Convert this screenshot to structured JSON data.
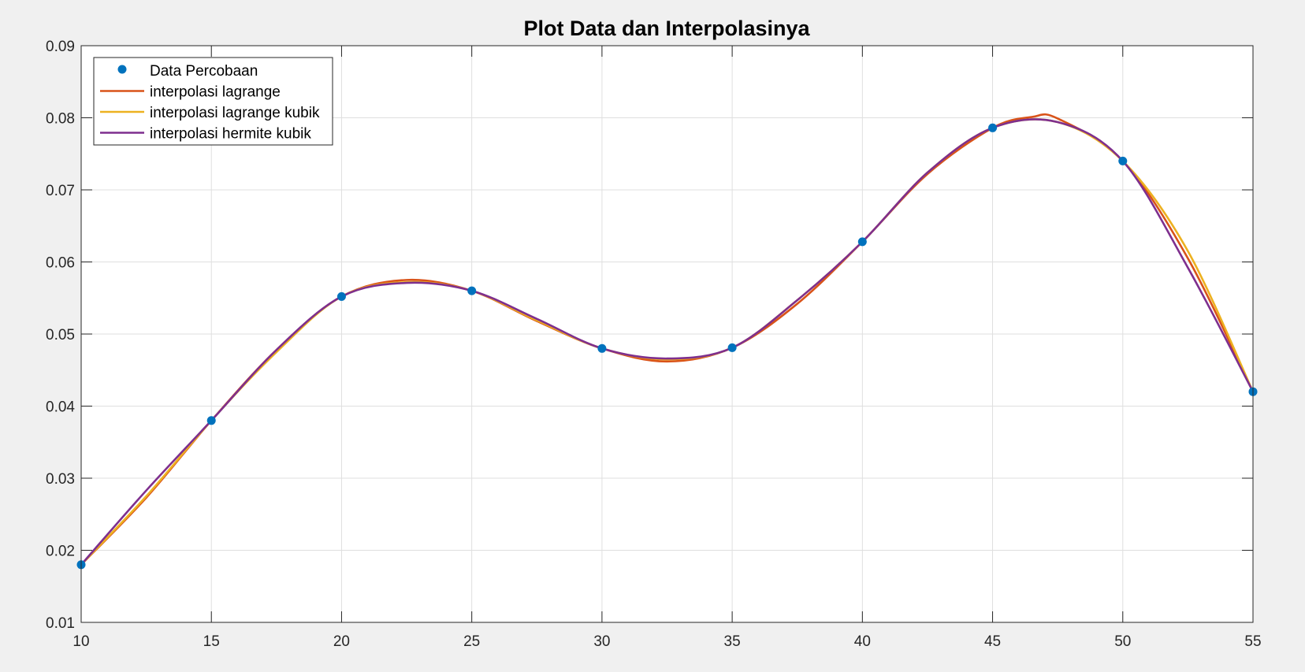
{
  "chart_data": {
    "type": "line",
    "title": "Plot Data dan Interpolasinya",
    "xlabel": "",
    "ylabel": "",
    "xlim": [
      10,
      55
    ],
    "ylim": [
      0.01,
      0.09
    ],
    "xticks": [
      10,
      15,
      20,
      25,
      30,
      35,
      40,
      45,
      50,
      55
    ],
    "yticks": [
      0.01,
      0.02,
      0.03,
      0.04,
      0.05,
      0.06,
      0.07,
      0.08,
      0.09
    ],
    "xtick_labels": [
      "10",
      "15",
      "20",
      "25",
      "30",
      "35",
      "40",
      "45",
      "50",
      "55"
    ],
    "ytick_labels": [
      "0.01",
      "0.02",
      "0.03",
      "0.04",
      "0.05",
      "0.06",
      "0.07",
      "0.08",
      "0.09"
    ],
    "grid": true,
    "legend_position": "top-left",
    "points": {
      "name": "Data Percobaan",
      "color": "#0072BD",
      "x": [
        10,
        15,
        20,
        25,
        30,
        35,
        40,
        45,
        50,
        55
      ],
      "y": [
        0.018,
        0.038,
        0.0552,
        0.056,
        0.048,
        0.0481,
        0.0628,
        0.0786,
        0.074,
        0.042
      ]
    },
    "series": [
      {
        "name": "interpolasi lagrange",
        "color": "#D95319",
        "x": [
          10,
          12.5,
          15,
          17.5,
          20,
          22.5,
          25,
          27.5,
          30,
          32.5,
          35,
          37.5,
          40,
          42.5,
          45,
          46.5,
          47.5,
          50,
          52.5,
          55
        ],
        "y": [
          0.018,
          0.0273,
          0.038,
          0.0478,
          0.0552,
          0.0575,
          0.056,
          0.0518,
          0.048,
          0.0462,
          0.0481,
          0.0542,
          0.0628,
          0.0722,
          0.0786,
          0.0801,
          0.0799,
          0.074,
          0.0605,
          0.042
        ]
      },
      {
        "name": "interpolasi lagrange kubik",
        "color": "#EDB120",
        "x": [
          10,
          12.5,
          15,
          17.5,
          20,
          22.5,
          25,
          27.5,
          30,
          32.5,
          35,
          37.5,
          40,
          42.5,
          45,
          47.5,
          50,
          52.5,
          55
        ],
        "y": [
          0.018,
          0.0275,
          0.038,
          0.0475,
          0.0552,
          0.0572,
          0.056,
          0.0519,
          0.048,
          0.0465,
          0.0481,
          0.0547,
          0.0628,
          0.0724,
          0.0786,
          0.0794,
          0.074,
          0.0615,
          0.042
        ]
      },
      {
        "name": "interpolasi hermite kubik",
        "color": "#7E2F8E",
        "x": [
          10,
          12.5,
          15,
          17.5,
          20,
          22.5,
          25,
          27.5,
          30,
          32.5,
          35,
          37.5,
          40,
          42.5,
          45,
          47.5,
          50,
          52.5,
          55
        ],
        "y": [
          0.018,
          0.0283,
          0.038,
          0.0478,
          0.0552,
          0.0571,
          0.056,
          0.0521,
          0.048,
          0.0466,
          0.0481,
          0.0547,
          0.0628,
          0.0724,
          0.0786,
          0.0794,
          0.074,
          0.0592,
          0.042
        ]
      }
    ]
  }
}
